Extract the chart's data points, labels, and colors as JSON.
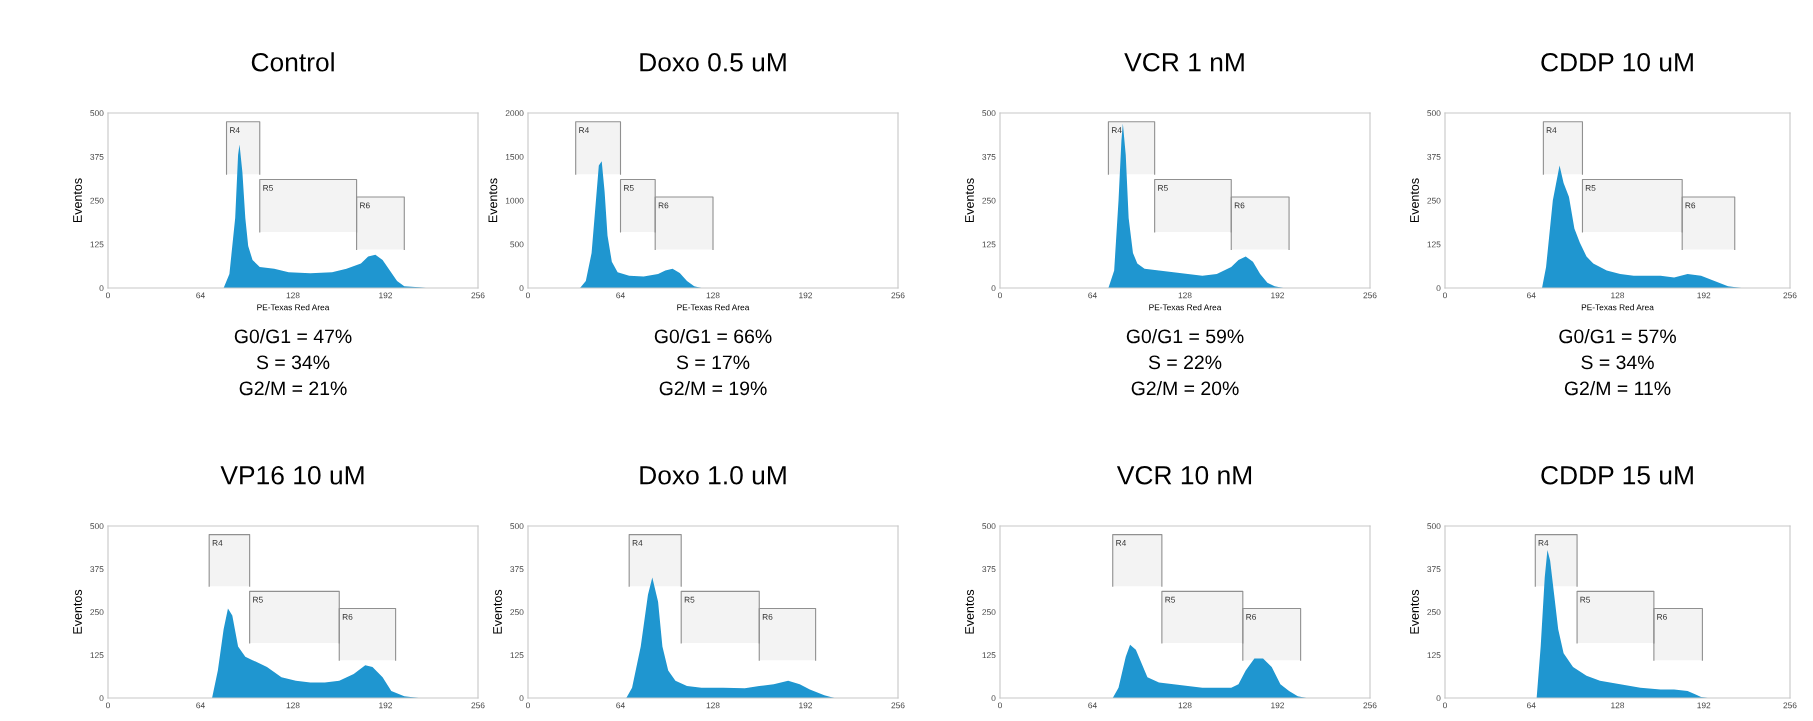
{
  "chart_data": [
    {
      "type": "area",
      "title": "Control",
      "xlabel": "PE-Texas Red Area",
      "ylabel": "Eventos",
      "color": "#1f96d0",
      "x": [
        80,
        84,
        88,
        90,
        91,
        93,
        95,
        97,
        100,
        105,
        115,
        125,
        140,
        155,
        165,
        175,
        180,
        185,
        190,
        195,
        200,
        205,
        215,
        220
      ],
      "values": [
        0,
        40,
        200,
        380,
        410,
        330,
        200,
        120,
        80,
        60,
        55,
        45,
        42,
        45,
        55,
        70,
        90,
        95,
        80,
        50,
        20,
        5,
        2,
        0
      ],
      "xlim": [
        0,
        256
      ],
      "xticks": [
        0,
        64,
        128,
        192,
        256
      ],
      "ylim": [
        0,
        500
      ],
      "yticks": [
        0,
        125,
        250,
        375,
        500
      ],
      "bands": [
        {
          "axis": "x",
          "from": 82,
          "to": 105,
          "label": "R4"
        },
        {
          "axis": "x",
          "from": 105,
          "to": 172,
          "label": "R5"
        },
        {
          "axis": "x",
          "from": 172,
          "to": 205,
          "label": "R6"
        }
      ],
      "annotations": [
        "G0/G1 = 47%",
        "S = 34%",
        "G2/M = 21%"
      ]
    },
    {
      "type": "area",
      "title": "Doxo 0.5 uM",
      "xlabel": "PE-Texas Red Area",
      "ylabel": "Eventos",
      "color": "#1f96d0",
      "x": [
        36,
        40,
        44,
        47,
        49,
        51,
        53,
        55,
        58,
        62,
        70,
        80,
        90,
        95,
        100,
        105,
        110,
        115,
        120
      ],
      "values": [
        0,
        80,
        400,
        1000,
        1400,
        1450,
        1100,
        600,
        300,
        180,
        140,
        130,
        160,
        200,
        220,
        170,
        80,
        20,
        0
      ],
      "xlim": [
        0,
        256
      ],
      "xticks": [
        0,
        64,
        128,
        192,
        256
      ],
      "ylim": [
        0,
        2000
      ],
      "yticks": [
        0,
        500,
        1000,
        1500,
        2000
      ],
      "bands": [
        {
          "axis": "x",
          "from": 33,
          "to": 64,
          "label": "R4"
        },
        {
          "axis": "x",
          "from": 64,
          "to": 88,
          "label": "R5"
        },
        {
          "axis": "x",
          "from": 88,
          "to": 128,
          "label": "R6"
        }
      ],
      "annotations": [
        "G0/G1 = 66%",
        "S = 17%",
        "G2/M = 19%"
      ]
    },
    {
      "type": "area",
      "title": "VCR 1 nM",
      "xlabel": "PE-Texas Red Area",
      "ylabel": "Eventos",
      "color": "#1f96d0",
      "x": [
        75,
        79,
        82,
        84,
        85,
        87,
        89,
        92,
        95,
        100,
        110,
        120,
        130,
        140,
        150,
        160,
        165,
        170,
        175,
        180,
        185,
        190,
        196
      ],
      "values": [
        0,
        50,
        250,
        420,
        470,
        380,
        200,
        100,
        70,
        55,
        50,
        45,
        40,
        35,
        40,
        60,
        80,
        90,
        75,
        40,
        15,
        5,
        0
      ],
      "xlim": [
        0,
        256
      ],
      "xticks": [
        0,
        64,
        128,
        192,
        256
      ],
      "ylim": [
        0,
        500
      ],
      "yticks": [
        0,
        125,
        250,
        375,
        500
      ],
      "bands": [
        {
          "axis": "x",
          "from": 75,
          "to": 107,
          "label": "R4"
        },
        {
          "axis": "x",
          "from": 107,
          "to": 160,
          "label": "R5"
        },
        {
          "axis": "x",
          "from": 160,
          "to": 200,
          "label": "R6"
        }
      ],
      "annotations": [
        "G0/G1 = 59%",
        "S = 22%",
        "G2/M = 20%"
      ]
    },
    {
      "type": "area",
      "title": "CDDP 10 uM",
      "xlabel": "PE-Texas Red Area",
      "ylabel": "Eventos",
      "color": "#1f96d0",
      "x": [
        72,
        75,
        80,
        85,
        88,
        92,
        96,
        100,
        105,
        110,
        120,
        130,
        140,
        150,
        160,
        170,
        180,
        190,
        200,
        210,
        220
      ],
      "values": [
        0,
        60,
        250,
        350,
        300,
        260,
        170,
        130,
        90,
        70,
        50,
        40,
        35,
        35,
        35,
        30,
        40,
        35,
        20,
        5,
        0
      ],
      "xlim": [
        0,
        256
      ],
      "xticks": [
        0,
        64,
        128,
        192,
        256
      ],
      "ylim": [
        0,
        500
      ],
      "yticks": [
        0,
        125,
        250,
        375,
        500
      ],
      "bands": [
        {
          "axis": "x",
          "from": 73,
          "to": 102,
          "label": "R4"
        },
        {
          "axis": "x",
          "from": 102,
          "to": 176,
          "label": "R5"
        },
        {
          "axis": "x",
          "from": 176,
          "to": 215,
          "label": "R6"
        }
      ],
      "annotations": [
        "G0/G1 = 57%",
        "S = 34%",
        "G2/M = 11%"
      ]
    },
    {
      "type": "area",
      "title": "VP16 10 uM",
      "ylabel": "Eventos",
      "color": "#1f96d0",
      "x": [
        72,
        76,
        80,
        83,
        86,
        90,
        95,
        100,
        110,
        120,
        130,
        140,
        150,
        160,
        170,
        178,
        183,
        190,
        196,
        205,
        215
      ],
      "values": [
        0,
        80,
        200,
        260,
        240,
        150,
        120,
        110,
        90,
        60,
        50,
        45,
        45,
        50,
        70,
        95,
        90,
        60,
        20,
        5,
        0
      ],
      "xlim": [
        0,
        256
      ],
      "xticks": [
        0,
        64,
        128,
        192,
        256
      ],
      "ylim": [
        0,
        500
      ],
      "yticks": [
        0,
        125,
        250,
        375,
        500
      ],
      "bands": [
        {
          "axis": "x",
          "from": 70,
          "to": 98,
          "label": "R4"
        },
        {
          "axis": "x",
          "from": 98,
          "to": 160,
          "label": "R5"
        },
        {
          "axis": "x",
          "from": 160,
          "to": 199,
          "label": "R6"
        }
      ]
    },
    {
      "type": "area",
      "title": "Doxo 1.0 uM",
      "ylabel": "Eventos",
      "color": "#1f96d0",
      "x": [
        68,
        72,
        78,
        83,
        86,
        90,
        93,
        97,
        102,
        110,
        120,
        135,
        150,
        160,
        170,
        180,
        188,
        195,
        205,
        212
      ],
      "values": [
        0,
        30,
        150,
        300,
        350,
        280,
        150,
        80,
        50,
        35,
        30,
        30,
        28,
        35,
        40,
        50,
        40,
        25,
        8,
        0
      ],
      "xlim": [
        0,
        256
      ],
      "xticks": [
        0,
        64,
        128,
        192,
        256
      ],
      "ylim": [
        0,
        500
      ],
      "yticks": [
        0,
        125,
        250,
        375,
        500
      ],
      "bands": [
        {
          "axis": "x",
          "from": 70,
          "to": 106,
          "label": "R4"
        },
        {
          "axis": "x",
          "from": 106,
          "to": 160,
          "label": "R5"
        },
        {
          "axis": "x",
          "from": 160,
          "to": 199,
          "label": "R6"
        }
      ]
    },
    {
      "type": "area",
      "title": "VCR 10 nM",
      "ylabel": "Eventos",
      "color": "#1f96d0",
      "x": [
        78,
        82,
        87,
        90,
        94,
        98,
        102,
        110,
        120,
        130,
        140,
        150,
        160,
        165,
        170,
        176,
        182,
        188,
        194,
        200,
        206,
        212
      ],
      "values": [
        0,
        30,
        120,
        155,
        140,
        100,
        60,
        45,
        40,
        35,
        30,
        30,
        30,
        40,
        80,
        115,
        115,
        90,
        40,
        20,
        5,
        0
      ],
      "xlim": [
        0,
        256
      ],
      "xticks": [
        0,
        64,
        128,
        192,
        256
      ],
      "ylim": [
        0,
        500
      ],
      "yticks": [
        0,
        125,
        250,
        375,
        500
      ],
      "bands": [
        {
          "axis": "x",
          "from": 78,
          "to": 112,
          "label": "R4"
        },
        {
          "axis": "x",
          "from": 112,
          "to": 168,
          "label": "R5"
        },
        {
          "axis": "x",
          "from": 168,
          "to": 208,
          "label": "R6"
        }
      ]
    },
    {
      "type": "area",
      "title": "CDDP 15 uM",
      "ylabel": "Eventos",
      "color": "#1f96d0",
      "x": [
        68,
        71,
        74,
        76,
        78,
        81,
        84,
        88,
        95,
        105,
        115,
        130,
        145,
        160,
        170,
        180,
        186,
        190,
        195
      ],
      "values": [
        0,
        150,
        350,
        430,
        400,
        300,
        200,
        130,
        90,
        65,
        50,
        40,
        30,
        25,
        25,
        20,
        10,
        3,
        0
      ],
      "xlim": [
        0,
        256
      ],
      "xticks": [
        0,
        64,
        128,
        192,
        256
      ],
      "ylim": [
        0,
        500
      ],
      "yticks": [
        0,
        125,
        250,
        375,
        500
      ],
      "bands": [
        {
          "axis": "x",
          "from": 67,
          "to": 98,
          "label": "R4"
        },
        {
          "axis": "x",
          "from": 98,
          "to": 155,
          "label": "R5"
        },
        {
          "axis": "x",
          "from": 155,
          "to": 191,
          "label": "R6"
        }
      ]
    }
  ]
}
